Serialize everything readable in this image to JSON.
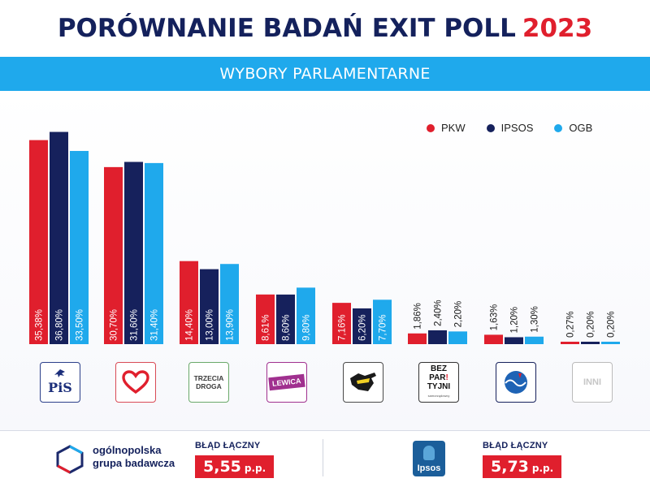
{
  "header": {
    "title": "PORÓWNANIE BADAŃ EXIT POLL",
    "year": "2023",
    "subtitle": "WYBORY PARLAMENTARNE"
  },
  "colors": {
    "pkw": "#e01f2d",
    "ipsos": "#16215c",
    "ogb": "#1fa9ec",
    "accent": "#1fa9ec"
  },
  "chart_data": {
    "type": "bar",
    "title": "PORÓWNANIE BADAŃ EXIT POLL 2023",
    "subtitle": "WYBORY PARLAMENTARNE",
    "categories": [
      "PiS",
      "KO",
      "TRZECIA DROGA",
      "LEWICA",
      "Konfederacja",
      "BEZPARTYJNI",
      "PJJ",
      "INNI"
    ],
    "series": [
      {
        "name": "PKW",
        "color": "#e01f2d",
        "values": [
          35.38,
          30.7,
          14.4,
          8.61,
          7.16,
          1.86,
          1.63,
          0.27
        ],
        "labels": [
          "35,38%",
          "30,70%",
          "14,40%",
          "8,61%",
          "7,16%",
          "1,86%",
          "1,63%",
          "0,27%"
        ]
      },
      {
        "name": "IPSOS",
        "color": "#16215c",
        "values": [
          36.8,
          31.6,
          13.0,
          8.6,
          6.2,
          2.4,
          1.2,
          0.2
        ],
        "labels": [
          "36,80%",
          "31,60%",
          "13,00%",
          "8,60%",
          "6,20%",
          "2,40%",
          "1,20%",
          "0,20%"
        ]
      },
      {
        "name": "OGB",
        "color": "#1fa9ec",
        "values": [
          33.5,
          31.4,
          13.9,
          9.8,
          7.7,
          2.2,
          1.3,
          0.2
        ],
        "labels": [
          "33,50%",
          "31,40%",
          "13,90%",
          "9,80%",
          "7,70%",
          "2,20%",
          "1,30%",
          "0,20%"
        ]
      }
    ],
    "ylim": [
      0,
      38
    ],
    "grid": false,
    "legend": "top-right",
    "xlabel": "",
    "ylabel": ""
  },
  "logos": {
    "pis": "PiS",
    "trzecia_droga": "TRZECIA DROGA",
    "lewica": "LEWICA",
    "bez_1": "BEZ",
    "bez_2": "PAR",
    "bez_3": "TYJNI",
    "bez_small": "samorządowcy",
    "inni": "INNI"
  },
  "footer": {
    "ogb_name_1": "ogólnopolska",
    "ogb_name_2": "grupa badawcza",
    "ogb_error_label": "BŁĄD ŁĄCZNY",
    "ogb_error_value": "5,55",
    "ogb_error_unit": "p.p.",
    "ipsos_name": "Ipsos",
    "ipsos_error_label": "BŁĄD ŁĄCZNY",
    "ipsos_error_value": "5,73",
    "ipsos_error_unit": "p.p."
  }
}
